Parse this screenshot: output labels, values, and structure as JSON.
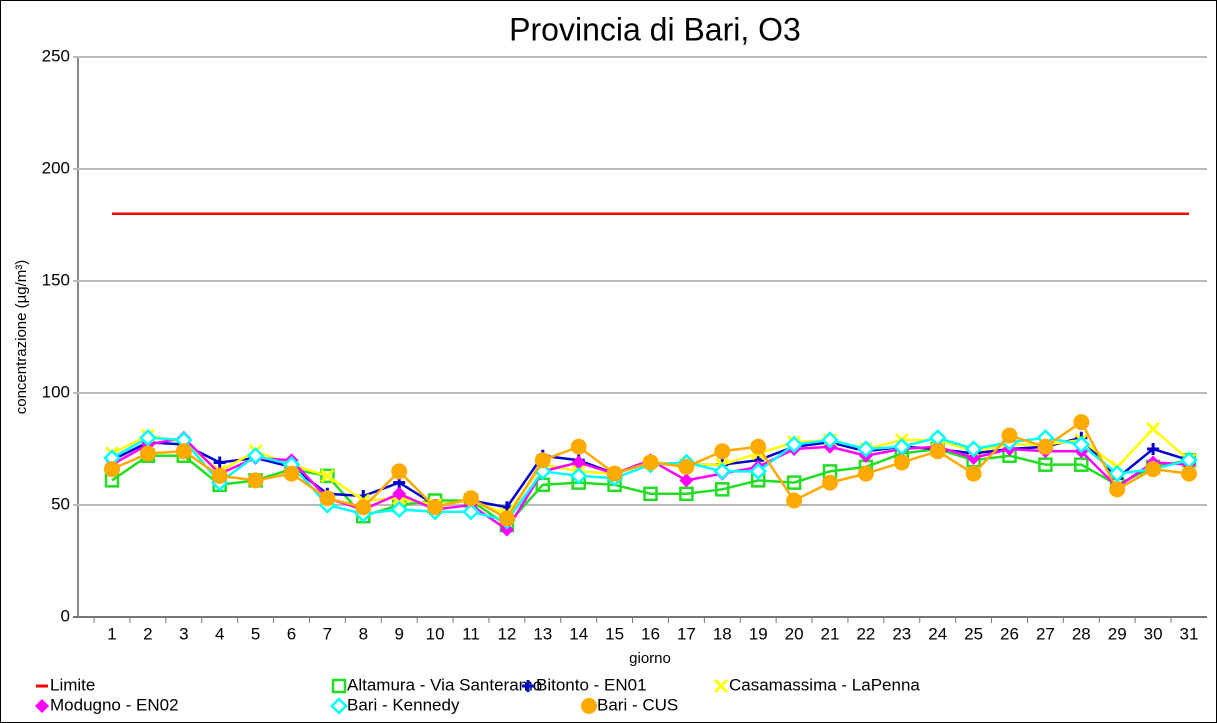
{
  "chart_data": {
    "type": "line",
    "title": "Provincia di Bari, O3",
    "x_label": "giorno",
    "y_label": "concentrazione (µg/m³)",
    "categories": [
      "1",
      "2",
      "3",
      "4",
      "5",
      "6",
      "7",
      "8",
      "9",
      "10",
      "11",
      "12",
      "13",
      "14",
      "15",
      "16",
      "17",
      "18",
      "19",
      "20",
      "21",
      "22",
      "23",
      "24",
      "25",
      "26",
      "27",
      "28",
      "29",
      "30",
      "31"
    ],
    "ylim": [
      0,
      250
    ],
    "yticks": [
      0,
      50,
      100,
      150,
      200,
      250
    ],
    "grid": true,
    "legend": "bottom",
    "series": [
      {
        "name": "Limite",
        "color": "#ff0000",
        "marker": "none",
        "values": [
          180,
          180,
          180,
          180,
          180,
          180,
          180,
          180,
          180,
          180,
          180,
          180,
          180,
          180,
          180,
          180,
          180,
          180,
          180,
          180,
          180,
          180,
          180,
          180,
          180,
          180,
          180,
          180,
          180,
          180,
          180
        ]
      },
      {
        "name": "Altamura - Via Santeramo",
        "color": "#22dd22",
        "marker": "square",
        "values": [
          61,
          72,
          72,
          59,
          61,
          66,
          63,
          45,
          50,
          52,
          52,
          41,
          59,
          60,
          59,
          55,
          55,
          57,
          61,
          60,
          65,
          67,
          73,
          75,
          70,
          72,
          68,
          68,
          59,
          67,
          70
        ]
      },
      {
        "name": "Bitonto - EN01",
        "color": "#0000cc",
        "marker": "plus",
        "values": [
          70,
          78,
          77,
          69,
          71,
          67,
          55,
          54,
          60,
          50,
          52,
          49,
          72,
          70,
          64,
          69,
          68,
          68,
          70,
          76,
          78,
          74,
          76,
          75,
          73,
          75,
          76,
          80,
          62,
          75,
          70
        ]
      },
      {
        "name": "Casamassima - LaPenna",
        "color": "#ffff00",
        "marker": "cross",
        "values": [
          73,
          81,
          78,
          65,
          74,
          68,
          63,
          52,
          53,
          50,
          52,
          46,
          68,
          65,
          64,
          69,
          68,
          68,
          73,
          78,
          79,
          75,
          79,
          79,
          74,
          77,
          77,
          79,
          67,
          84,
          70
        ]
      },
      {
        "name": "Modugno - EN02",
        "color": "#ff00ff",
        "marker": "diamond",
        "values": [
          68,
          77,
          80,
          64,
          71,
          70,
          53,
          48,
          55,
          48,
          50,
          39,
          65,
          69,
          64,
          70,
          61,
          64,
          67,
          75,
          76,
          72,
          75,
          76,
          71,
          75,
          74,
          74,
          58,
          69,
          68
        ]
      },
      {
        "name": "Bari - Kennedy",
        "color": "#00ffff",
        "marker": "diamond-open",
        "values": [
          71,
          80,
          79,
          60,
          72,
          68,
          50,
          46,
          48,
          47,
          47,
          43,
          65,
          63,
          62,
          68,
          69,
          65,
          65,
          77,
          79,
          75,
          76,
          80,
          75,
          78,
          80,
          77,
          64,
          66,
          70
        ]
      },
      {
        "name": "Bari - CUS",
        "color": "#ffaa00",
        "marker": "circle",
        "values": [
          66,
          73,
          74,
          63,
          61,
          64,
          53,
          49,
          65,
          49,
          53,
          44,
          70,
          76,
          64,
          69,
          67,
          74,
          76,
          52,
          60,
          64,
          69,
          74,
          64,
          81,
          76,
          87,
          57,
          66,
          64
        ]
      }
    ]
  }
}
